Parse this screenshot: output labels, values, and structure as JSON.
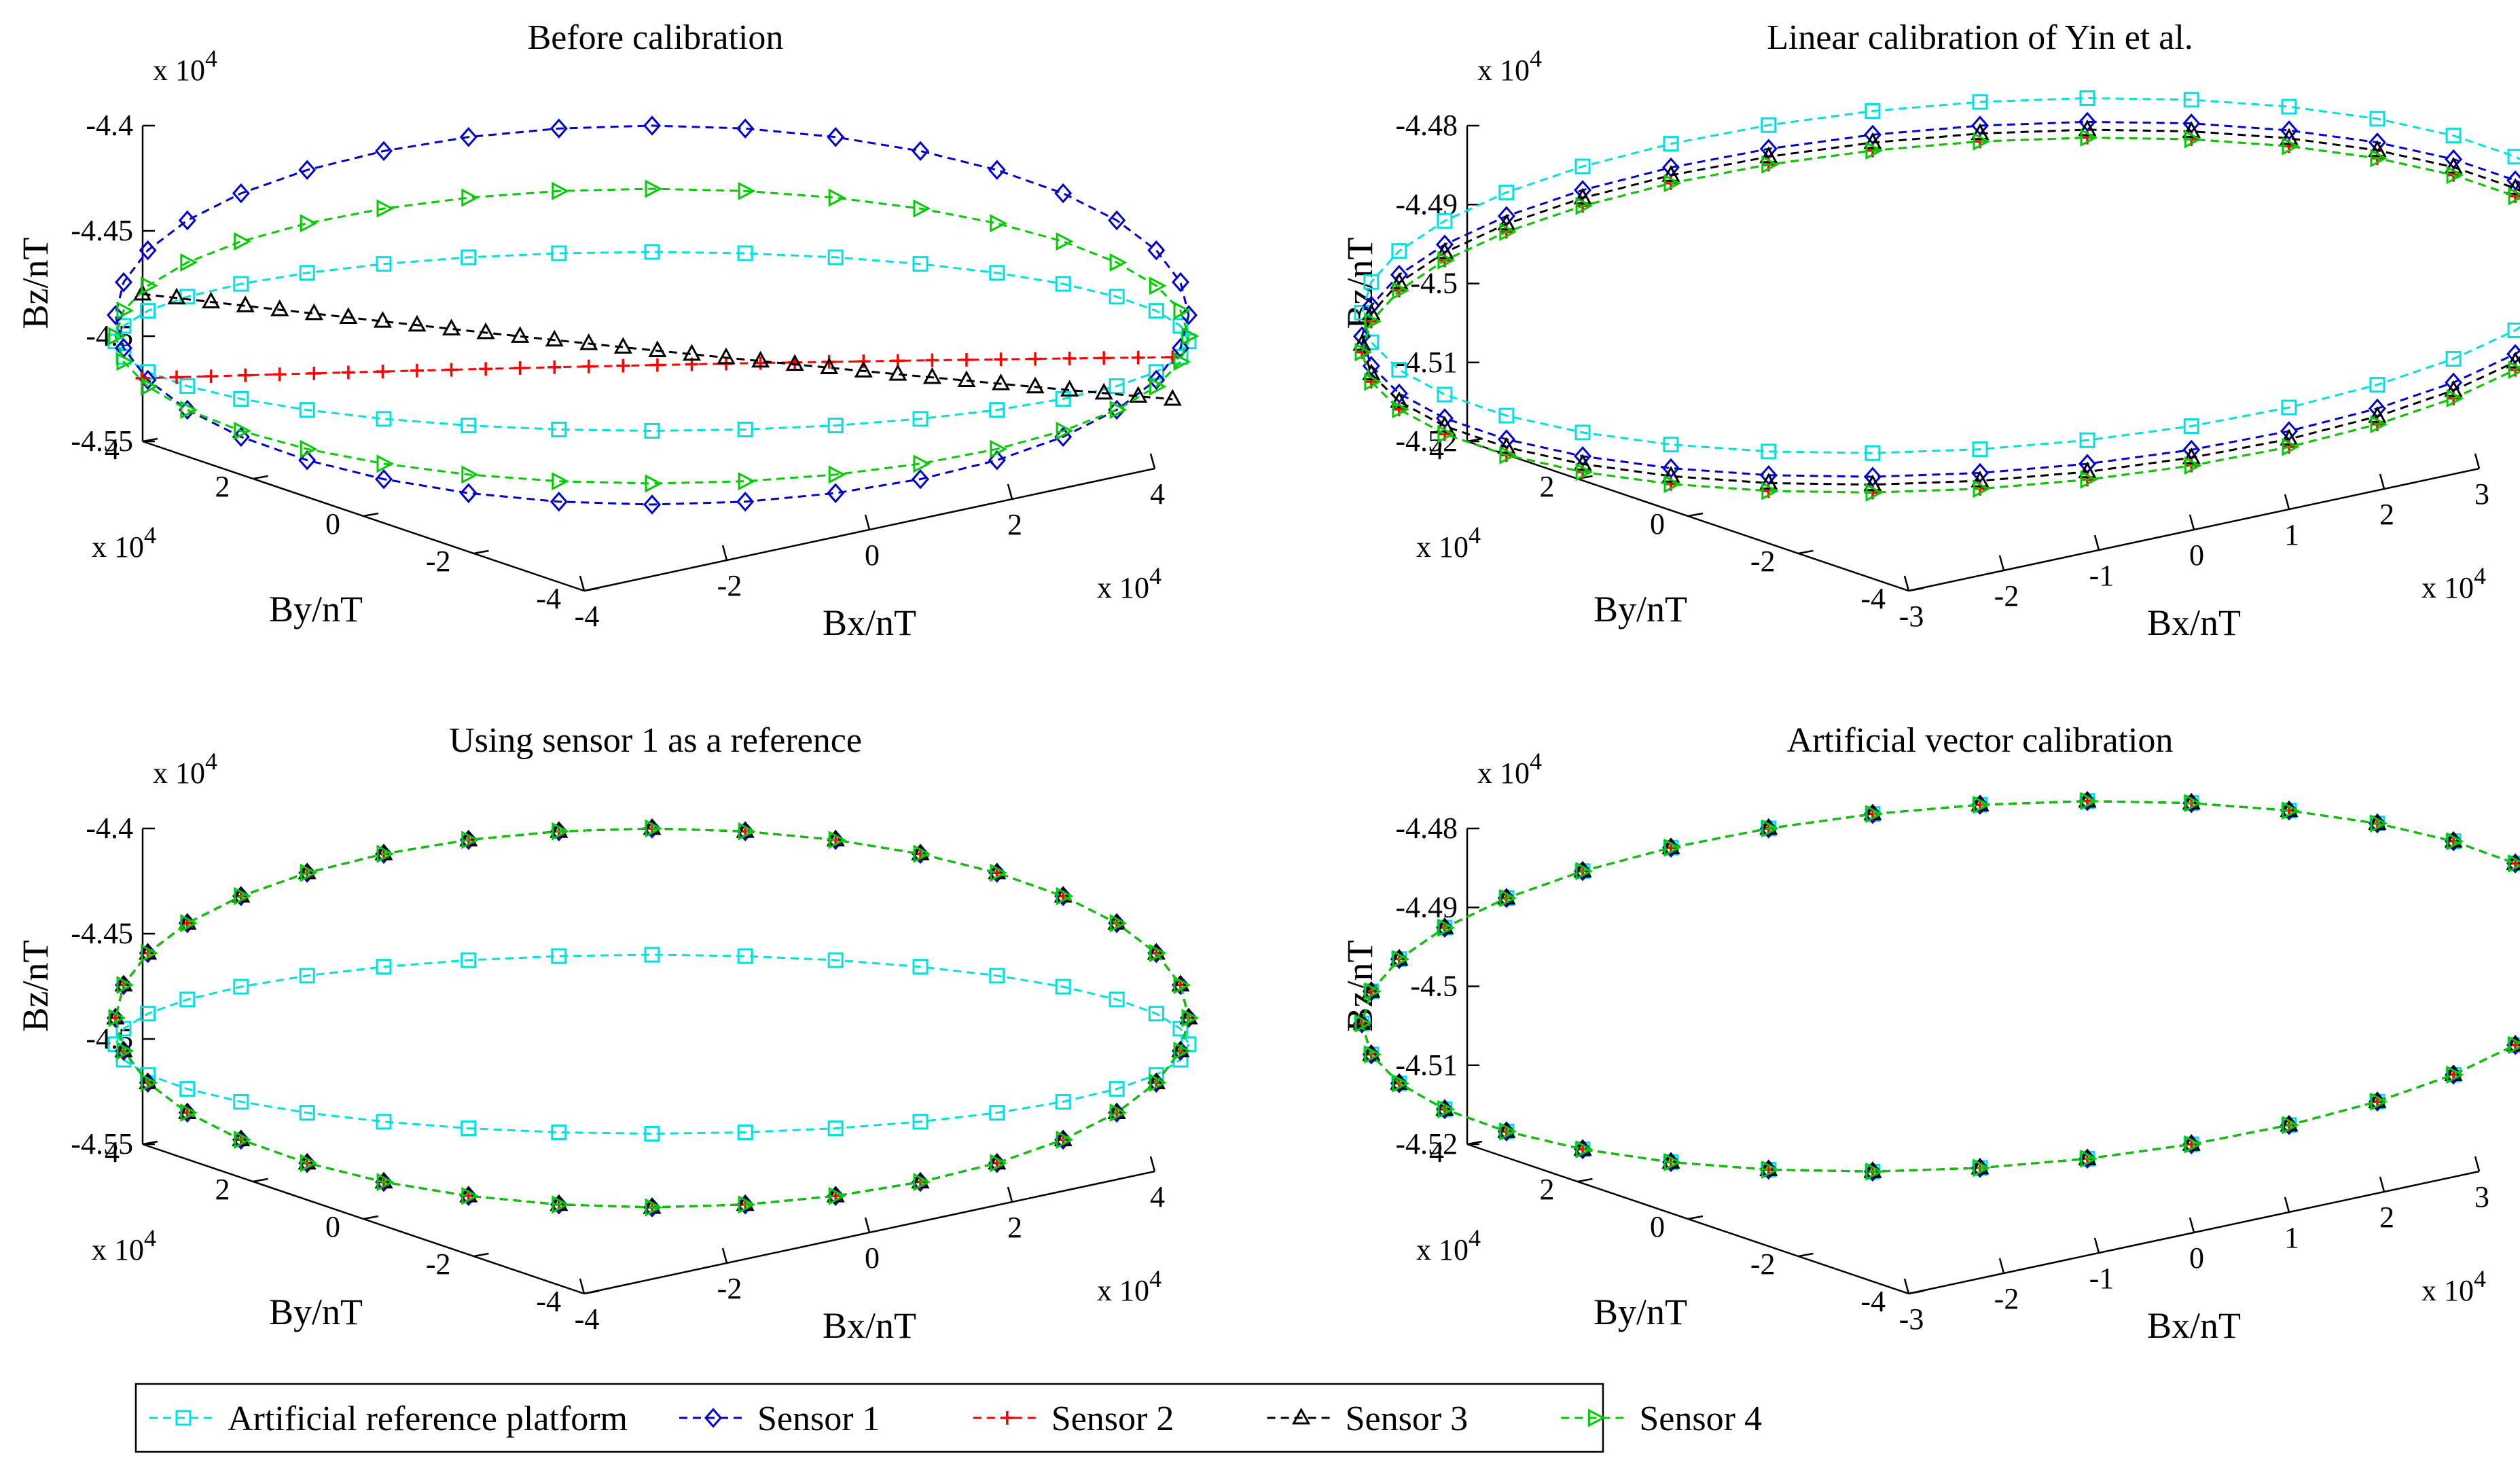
{
  "figure_title": "",
  "legend": {
    "entries": [
      {
        "label": "Artificial reference platform",
        "color": "#00e0e0",
        "marker": "square"
      },
      {
        "label": "Sensor 1",
        "color": "#0000cc",
        "marker": "diamond"
      },
      {
        "label": "Sensor 2",
        "color": "#ff0000",
        "marker": "plus"
      },
      {
        "label": "Sensor 3",
        "color": "#000000",
        "marker": "triangle-up"
      },
      {
        "label": "Sensor 4",
        "color": "#00cc00",
        "marker": "triangle-right"
      }
    ]
  },
  "chart_data": [
    {
      "type": "line3d",
      "title": "Before calibration",
      "xlabel": "Bx/nT",
      "ylabel": "By/nT",
      "zlabel": "Bz/nT",
      "x_exponent": "x 10^4",
      "y_exponent": "x 10^4",
      "z_exponent": "x 10^4",
      "x_ticks": [
        "-4",
        "-2",
        "0",
        "2",
        "4"
      ],
      "y_ticks": [
        "-4",
        "-2",
        "0",
        "2",
        "4"
      ],
      "z_ticks": [
        "-4.4",
        "-4.45",
        "-4.5",
        "-4.55"
      ],
      "xlim": [
        -4,
        4
      ],
      "ylim": [
        -4,
        4
      ],
      "zlim": [
        -4.55,
        -4.4
      ],
      "series": [
        {
          "name": "Artificial reference platform",
          "shape": "ellipse",
          "center_z": -4.5,
          "half_width": 3.5,
          "z_top": -4.46,
          "z_bottom": -4.545
        },
        {
          "name": "Sensor 1",
          "shape": "ellipse",
          "center_z": -4.5,
          "half_width": 3.5,
          "z_top": -4.4,
          "z_bottom": -4.58
        },
        {
          "name": "Sensor 2",
          "shape": "line",
          "start_z": -4.52,
          "end_z": -4.51
        },
        {
          "name": "Sensor 3",
          "shape": "line",
          "start_z": -4.48,
          "end_z": -4.53
        },
        {
          "name": "Sensor 4",
          "shape": "ellipse",
          "center_z": -4.5,
          "half_width": 3.3,
          "z_top": -4.43,
          "z_bottom": -4.57
        }
      ]
    },
    {
      "type": "line3d",
      "title": "Linear calibration of Yin et al.",
      "xlabel": "Bx/nT",
      "ylabel": "By/nT",
      "zlabel": "Bz/nT",
      "x_exponent": "x 10^4",
      "y_exponent": "x 10^4",
      "z_exponent": "x 10^4",
      "x_ticks": [
        "-3",
        "-2",
        "-1",
        "0",
        "1",
        "2",
        "3"
      ],
      "y_ticks": [
        "-4",
        "-2",
        "0",
        "2",
        "4"
      ],
      "z_ticks": [
        "-4.48",
        "-4.49",
        "-4.5",
        "-4.51",
        "-4.52"
      ],
      "xlim": [
        -3,
        3
      ],
      "ylim": [
        -4,
        4
      ],
      "zlim": [
        -4.52,
        -4.48
      ],
      "series": [
        {
          "name": "Artificial reference platform",
          "shape": "ellipse",
          "center_z": -4.499,
          "z_top": -4.477,
          "z_bottom": -4.521
        },
        {
          "name": "Sensor 1",
          "shape": "ellipse",
          "center_z": -4.502,
          "z_top": -4.48,
          "z_bottom": -4.524
        },
        {
          "name": "Sensor 2",
          "shape": "ellipse",
          "center_z": -4.504,
          "z_top": -4.482,
          "z_bottom": -4.526
        },
        {
          "name": "Sensor 3",
          "shape": "ellipse",
          "center_z": -4.503,
          "z_top": -4.481,
          "z_bottom": -4.525
        },
        {
          "name": "Sensor 4",
          "shape": "ellipse",
          "center_z": -4.504,
          "z_top": -4.482,
          "z_bottom": -4.526
        }
      ]
    },
    {
      "type": "line3d",
      "title": "Using sensor 1 as a reference",
      "xlabel": "Bx/nT",
      "ylabel": "By/nT",
      "zlabel": "Bz/nT",
      "x_exponent": "x 10^4",
      "y_exponent": "x 10^4",
      "z_exponent": "x 10^4",
      "x_ticks": [
        "-4",
        "-2",
        "0",
        "2",
        "4"
      ],
      "y_ticks": [
        "-4",
        "-2",
        "0",
        "2",
        "4"
      ],
      "z_ticks": [
        "-4.4",
        "-4.45",
        "-4.5",
        "-4.55"
      ],
      "xlim": [
        -4,
        4
      ],
      "ylim": [
        -4,
        4
      ],
      "zlim": [
        -4.55,
        -4.4
      ],
      "series": [
        {
          "name": "Artificial reference platform",
          "shape": "ellipse",
          "center_z": -4.5,
          "z_top": -4.46,
          "z_bottom": -4.545
        },
        {
          "name": "Sensor 1",
          "shape": "ellipse",
          "center_z": -4.5,
          "z_top": -4.4,
          "z_bottom": -4.58
        },
        {
          "name": "Sensor 2",
          "shape": "ellipse",
          "center_z": -4.5,
          "z_top": -4.4,
          "z_bottom": -4.58
        },
        {
          "name": "Sensor 3",
          "shape": "ellipse",
          "center_z": -4.5,
          "z_top": -4.4,
          "z_bottom": -4.58
        },
        {
          "name": "Sensor 4",
          "shape": "ellipse",
          "center_z": -4.5,
          "z_top": -4.4,
          "z_bottom": -4.58
        }
      ]
    },
    {
      "type": "line3d",
      "title": "Artificial vector calibration",
      "xlabel": "Bx/nT",
      "ylabel": "By/nT",
      "zlabel": "Bz/nT",
      "x_exponent": "x 10^4",
      "y_exponent": "x 10^4",
      "z_exponent": "x 10^4",
      "x_ticks": [
        "-3",
        "-2",
        "-1",
        "0",
        "1",
        "2",
        "3"
      ],
      "y_ticks": [
        "-4",
        "-2",
        "0",
        "2",
        "4"
      ],
      "z_ticks": [
        "-4.48",
        "-4.49",
        "-4.5",
        "-4.51",
        "-4.52"
      ],
      "xlim": [
        -3,
        3
      ],
      "ylim": [
        -4,
        4
      ],
      "zlim": [
        -4.52,
        -4.48
      ],
      "series": [
        {
          "name": "Artificial reference platform",
          "shape": "ellipse",
          "center_z": -4.5,
          "z_top": -4.477,
          "z_bottom": -4.523
        },
        {
          "name": "Sensor 1",
          "shape": "ellipse",
          "center_z": -4.5,
          "z_top": -4.477,
          "z_bottom": -4.523
        },
        {
          "name": "Sensor 2",
          "shape": "ellipse",
          "center_z": -4.5,
          "z_top": -4.477,
          "z_bottom": -4.523
        },
        {
          "name": "Sensor 3",
          "shape": "ellipse",
          "center_z": -4.5,
          "z_top": -4.477,
          "z_bottom": -4.523
        },
        {
          "name": "Sensor 4",
          "shape": "ellipse",
          "center_z": -4.5,
          "z_top": -4.477,
          "z_bottom": -4.523
        }
      ]
    }
  ]
}
